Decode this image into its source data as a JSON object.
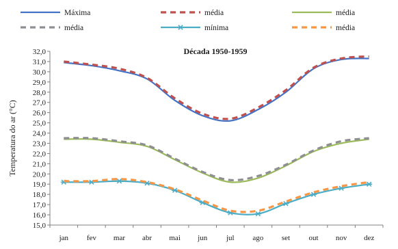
{
  "chart_data": {
    "type": "line",
    "title": "Década 1950-1959",
    "xlabel": "",
    "ylabel": "Temperatura do ar (°C)",
    "categories": [
      "jan",
      "fev",
      "mar",
      "abr",
      "mai",
      "jun",
      "jul",
      "ago",
      "set",
      "out",
      "nov",
      "dez"
    ],
    "ylim": [
      15.0,
      32.0
    ],
    "yticks": [
      "15,0",
      "16,0",
      "17,0",
      "18,0",
      "19,0",
      "20,0",
      "21,0",
      "22,0",
      "23,0",
      "24,0",
      "25,0",
      "26,0",
      "27,0",
      "28,0",
      "29,0",
      "30,0",
      "31,0",
      "32,0"
    ],
    "grid": false,
    "legend_position": "top",
    "series": [
      {
        "name": "Máxima",
        "color": "#4472c4",
        "style": "solid",
        "marker": "none",
        "values": [
          30.9,
          30.6,
          30.1,
          29.3,
          27.2,
          25.7,
          25.2,
          26.3,
          28.0,
          30.3,
          31.2,
          31.3
        ]
      },
      {
        "name": "média",
        "color": "#c0504d",
        "style": "dashed",
        "marker": "none",
        "values": [
          31.0,
          30.7,
          30.3,
          29.4,
          27.4,
          25.9,
          25.4,
          26.5,
          28.2,
          30.4,
          31.3,
          31.5
        ]
      },
      {
        "name": "média",
        "color": "#9bbb59",
        "style": "solid",
        "marker": "none",
        "values": [
          23.4,
          23.4,
          23.1,
          22.7,
          21.4,
          20.1,
          19.2,
          19.6,
          20.8,
          22.2,
          23.0,
          23.4
        ]
      },
      {
        "name": "média",
        "color": "#8e8e93",
        "style": "dashed",
        "marker": "none",
        "values": [
          23.5,
          23.5,
          23.2,
          22.8,
          21.5,
          20.2,
          19.4,
          19.8,
          20.9,
          22.3,
          23.2,
          23.5
        ]
      },
      {
        "name": "mínima",
        "color": "#4bacc6",
        "style": "solid",
        "marker": "star",
        "values": [
          19.2,
          19.2,
          19.3,
          19.1,
          18.4,
          17.2,
          16.2,
          16.1,
          17.1,
          18.0,
          18.6,
          19.0
        ]
      },
      {
        "name": "média",
        "color": "#f79646",
        "style": "dashed",
        "marker": "none",
        "values": [
          19.3,
          19.3,
          19.5,
          19.2,
          18.5,
          17.4,
          16.4,
          16.4,
          17.3,
          18.2,
          18.8,
          19.2
        ]
      }
    ]
  }
}
